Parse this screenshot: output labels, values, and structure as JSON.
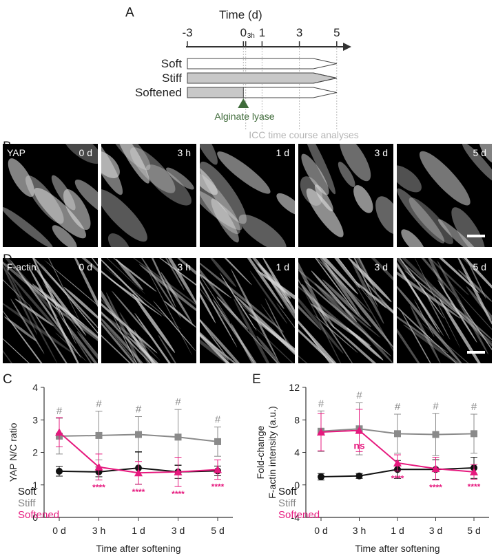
{
  "panel_a": {
    "letter": "A",
    "axis_title": "Time (d)",
    "ticks": [
      {
        "t": -3,
        "label": "-3"
      },
      {
        "t": 0,
        "label": "0"
      },
      {
        "t": 0.125,
        "label": "3h"
      },
      {
        "t": 1,
        "label": "1"
      },
      {
        "t": 3,
        "label": "3"
      },
      {
        "t": 5,
        "label": "5"
      }
    ],
    "bars": [
      {
        "label": "Soft",
        "grey_until": -3
      },
      {
        "label": "Stiff",
        "grey_until": 5
      },
      {
        "label": "Softened",
        "grey_until": 0
      }
    ],
    "treatment_label": "Alginate lyase",
    "analysis_label": "ICC time course analyses",
    "treatment_color": "#3f6b3a"
  },
  "panel_b": {
    "letter": "B",
    "stain": "YAP",
    "timepoints": [
      "0 d",
      "3 h",
      "1 d",
      "3 d",
      "5 d"
    ]
  },
  "panel_d": {
    "letter": "D",
    "stain": "F-actin",
    "timepoints": [
      "0 d",
      "3 h",
      "1 d",
      "3 d",
      "5 d"
    ]
  },
  "chart_data": [
    {
      "panel": "C",
      "type": "line",
      "xlabel": "Time after softening",
      "ylabel": "YAP N/C ratio",
      "categories": [
        "0 d",
        "3 h",
        "1 d",
        "3 d",
        "5 d"
      ],
      "ylim": [
        0,
        4
      ],
      "yticks": [
        "0",
        "1",
        "2",
        "3",
        "4"
      ],
      "series": [
        {
          "name": "Soft",
          "color": "#111111",
          "marker": "circle",
          "values": [
            1.42,
            1.4,
            1.52,
            1.4,
            1.43
          ],
          "errors": [
            0.15,
            0.15,
            0.5,
            0.2,
            0.15
          ]
        },
        {
          "name": "Stiff",
          "color": "#8a8a8a",
          "marker": "square",
          "values": [
            2.5,
            2.52,
            2.55,
            2.47,
            2.33
          ],
          "errors": [
            0.55,
            0.75,
            0.55,
            0.85,
            0.45
          ]
        },
        {
          "name": "Softened",
          "color": "#e6197e",
          "marker": "triangle",
          "values": [
            2.62,
            1.55,
            1.37,
            1.4,
            1.47
          ],
          "errors": [
            0.45,
            0.4,
            0.35,
            0.45,
            0.3
          ]
        }
      ],
      "top_annotations": [
        "#",
        "#",
        "#",
        "#",
        "#"
      ],
      "bottom_annotations": [
        "",
        "****",
        "****",
        "****",
        "****"
      ]
    },
    {
      "panel": "E",
      "type": "line",
      "xlabel": "Time after softening",
      "ylabel": "F-actin intensity (a.u.)",
      "ylabel_line1": "Fold-change",
      "categories": [
        "0 d",
        "3 h",
        "1 d",
        "3 d",
        "5 d"
      ],
      "ylim": [
        -4,
        12
      ],
      "yticks": [
        "-4",
        "0",
        "4",
        "8",
        "12"
      ],
      "series": [
        {
          "name": "Soft",
          "color": "#111111",
          "marker": "circle",
          "values": [
            1.0,
            1.1,
            1.9,
            1.9,
            2.1
          ],
          "errors": [
            0.4,
            0.3,
            1.1,
            1.2,
            1.3
          ]
        },
        {
          "name": "Stiff",
          "color": "#8a8a8a",
          "marker": "square",
          "values": [
            6.6,
            6.9,
            6.3,
            6.2,
            6.3
          ],
          "errors": [
            2.5,
            3.2,
            2.4,
            2.6,
            2.4
          ]
        },
        {
          "name": "Softened",
          "color": "#e6197e",
          "marker": "triangle",
          "values": [
            6.5,
            6.7,
            2.7,
            2.0,
            1.6
          ],
          "errors": [
            2.3,
            2.6,
            1.0,
            1.4,
            0.9
          ]
        }
      ],
      "top_annotations": [
        "#",
        "#",
        "#",
        "#",
        "#"
      ],
      "bottom_annotations": [
        "",
        "ns",
        "****",
        "****",
        "****"
      ]
    }
  ]
}
